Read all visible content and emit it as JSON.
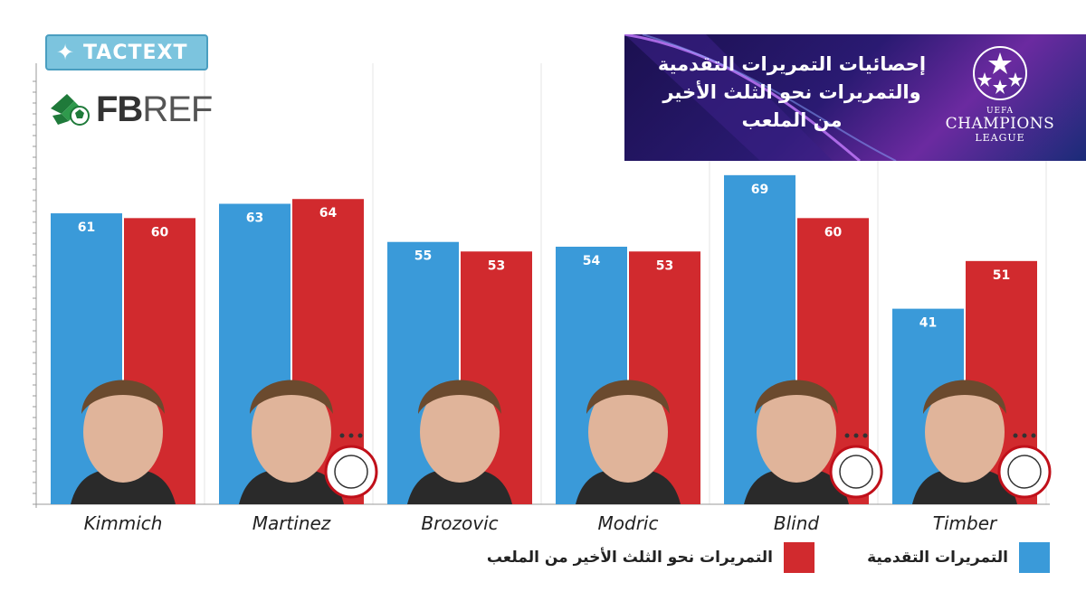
{
  "brand": {
    "tag": "TACTEXT",
    "tag_icon": "bird-icon",
    "source_prefix": "FB",
    "source_suffix": "REF"
  },
  "banner": {
    "title_lines": [
      "إحصائيات التمريرات التقدمية",
      "والتمريرات نحو الثلث الأخير",
      "من الملعب"
    ],
    "competition_small": "UEFA",
    "competition_main": "CHAMPIONS",
    "competition_sub": "LEAGUE"
  },
  "colors": {
    "progressive": "#3a9ad9",
    "final_third": "#d12a2e",
    "grid": "#e6e6e6",
    "axis": "#999999"
  },
  "chart_data": {
    "type": "bar",
    "categories": [
      "Kimmich",
      "Martinez",
      "Brozovic",
      "Modric",
      "Blind",
      "Timber"
    ],
    "series": [
      {
        "name": "التمريرات التقدمية",
        "values": [
          61,
          63,
          55,
          54,
          69,
          41
        ],
        "color": "#3a9ad9"
      },
      {
        "name": "التمريرات نحو الثلث الأخير من الملعب",
        "values": [
          60,
          64,
          53,
          53,
          60,
          51
        ],
        "color": "#d12a2e"
      }
    ],
    "club_badges": [
      false,
      true,
      false,
      false,
      true,
      true
    ],
    "ylim": [
      0,
      90
    ],
    "grid": false,
    "legend": "bottom"
  }
}
